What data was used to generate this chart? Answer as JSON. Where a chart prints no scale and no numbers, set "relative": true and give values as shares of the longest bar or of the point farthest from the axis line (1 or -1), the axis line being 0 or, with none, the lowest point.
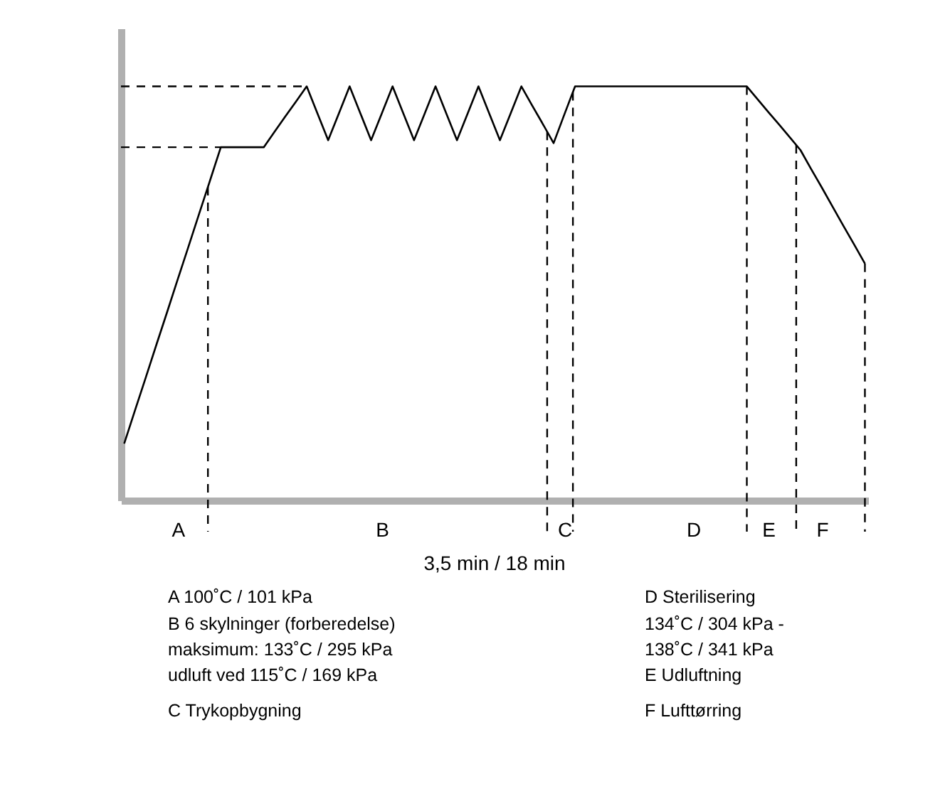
{
  "chart_data": {
    "type": "line",
    "relative": true,
    "xlabel": "3,5 min / 18 min",
    "tick_labels": "x",
    "grid": false,
    "marker": "none",
    "line_style": "solid",
    "categories": [
      null,
      null,
      null,
      null,
      null,
      "A",
      null,
      null,
      null,
      null,
      null,
      null,
      null,
      null,
      null,
      null,
      null,
      null,
      null,
      null,
      null,
      null,
      null,
      null,
      "B",
      null,
      null,
      null,
      null,
      null,
      null,
      null,
      null,
      null,
      null,
      null,
      null,
      null,
      null,
      null,
      null,
      "C",
      null,
      null,
      null,
      null,
      null,
      null,
      null,
      null,
      null,
      null,
      null,
      "D",
      null,
      null,
      null,
      null,
      null,
      null,
      "E",
      null,
      null,
      null,
      null,
      "F",
      null,
      null,
      null,
      null
    ],
    "series": [
      {
        "color": "#000000",
        "values": [
          0.137,
          0.217,
          0.296,
          0.376,
          0.455,
          0.535,
          0.614,
          0.694,
          0.773,
          0.853,
          0.853,
          0.853,
          0.853,
          0.853,
          0.89,
          0.927,
          0.963,
          1,
          0.935,
          0.87,
          0.935,
          1,
          0.935,
          0.87,
          0.935,
          1,
          0.935,
          0.87,
          0.935,
          1,
          0.935,
          0.87,
          0.935,
          1,
          0.935,
          0.87,
          0.935,
          1,
          0.954,
          0.909,
          0.863,
          0.932,
          1,
          1,
          1,
          1,
          1,
          1,
          1,
          1,
          1,
          1,
          1,
          1,
          1,
          1,
          1,
          1,
          1,
          0.969,
          0.938,
          0.908,
          0.877,
          0.846,
          0.8,
          0.755,
          0.709,
          0.663,
          0.618,
          0.572
        ]
      }
    ],
    "ref_lines": [
      {
        "axis": "y",
        "value": 1,
        "line_style": "dashed"
      },
      {
        "axis": "y",
        "value": 0.853,
        "line_style": "dashed"
      }
    ],
    "annotations": [
      "A    100˚C / 101 kPa",
      "B    6 skylninger (forberedelse)",
      "       maksimum: 133˚C / 295 kPa",
      "       udluft ved 115˚C / 169 kPa",
      "C    Trykopbygning",
      "D    Sterilisering",
      "       134˚C / 304 kPa -",
      "       138˚C / 341 kPa",
      "E    Udluftning",
      "F    Lufttørring"
    ]
  }
}
